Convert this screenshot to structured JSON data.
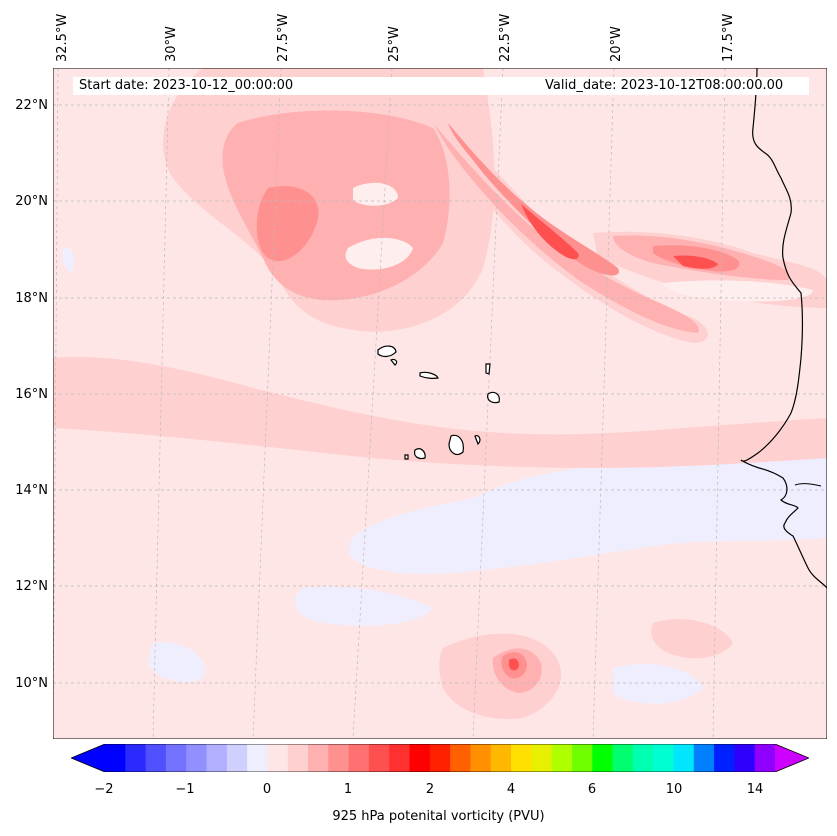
{
  "map": {
    "title_start": "Start date: 2023-10-12_00:00:00",
    "title_valid": "Valid_date: 2023-10-12T08:00:00.00",
    "lon_labels": [
      "32.5°W",
      "30°W",
      "27.5°W",
      "25°W",
      "22.5°W",
      "20°W",
      "17.5°W"
    ],
    "lat_labels": [
      "22°N",
      "20°N",
      "18°N",
      "16°N",
      "14°N",
      "12°N",
      "10°N"
    ]
  },
  "colorbar": {
    "label": "925 hPa potenital vorticity (PVU)",
    "ticks": [
      "−2",
      "−1",
      "0",
      "1",
      "2",
      "4",
      "6",
      "10",
      "14"
    ],
    "colors": [
      "#0000ff",
      "#2a2aff",
      "#5050ff",
      "#7373ff",
      "#9090ff",
      "#b0b0ff",
      "#d0d0ff",
      "#eeeeff",
      "#ffe6e6",
      "#ffd0d0",
      "#ffb0b0",
      "#ff9090",
      "#ff7070",
      "#ff5050",
      "#ff3030",
      "#ff0000",
      "#ff2000",
      "#ff6000",
      "#ff9000",
      "#ffb800",
      "#ffe000",
      "#e6f000",
      "#b0ff00",
      "#70ff00",
      "#00ff00",
      "#00ff70",
      "#00ffb0",
      "#00ffd0",
      "#00e6ff",
      "#0080ff",
      "#0020ff",
      "#3000ff",
      "#9000ff"
    ],
    "extend_low_color": "#0000ff",
    "extend_high_color": "#cc00ff"
  }
}
